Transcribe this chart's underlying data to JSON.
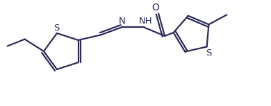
{
  "bg_color": "#ffffff",
  "line_color": "#2b2b5a",
  "line_width": 1.6,
  "font_size": 9.5,
  "figsize": [
    3.9,
    1.53
  ],
  "dpi": 100,
  "xlim": [
    0.0,
    7.8
  ],
  "ylim": [
    0.0,
    3.0
  ]
}
